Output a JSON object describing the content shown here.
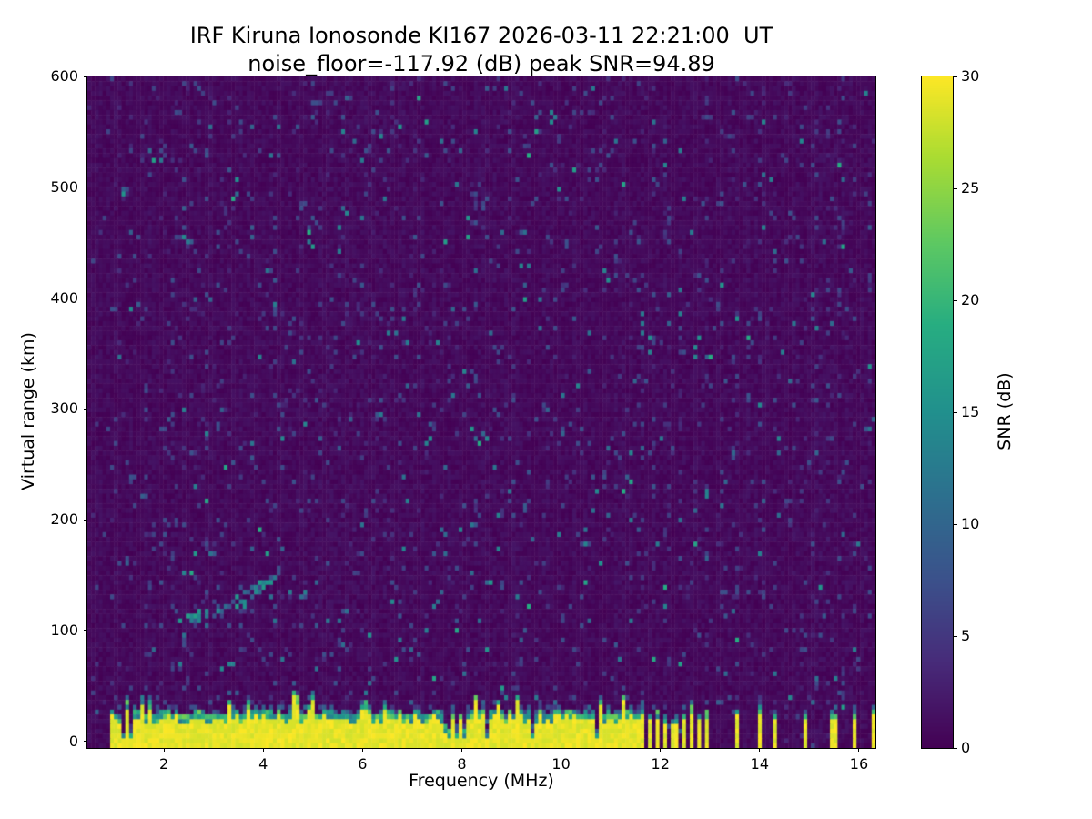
{
  "chart_data": {
    "type": "heatmap",
    "title_lines": [
      "IRF Kiruna Ionosonde KI167 2026-03-11 22:21:00  UT",
      "noise_floor=-117.92 (dB) peak SNR=94.89"
    ],
    "station": {
      "name": "IRF Kiruna Ionosonde",
      "code": "KI167",
      "timestamp_ut": "2026-03-11 22:21:00"
    },
    "stats": {
      "noise_floor_db": -117.92,
      "peak_snr_db": 94.89
    },
    "xlabel": "Frequency (MHz)",
    "ylabel": "Virtual range (km)",
    "xlim": [
      0.46,
      16.33
    ],
    "ylim": [
      -6,
      600
    ],
    "x_ticks": [
      2,
      4,
      6,
      8,
      10,
      12,
      14,
      16
    ],
    "y_ticks": [
      0,
      100,
      200,
      300,
      400,
      500,
      600
    ],
    "grid": false,
    "colorbar": {
      "label": "SNR (dB)",
      "min": 0,
      "max": 30,
      "ticks": [
        0,
        5,
        10,
        15,
        20,
        25,
        30
      ],
      "colormap": "viridis"
    },
    "colormap_stops": [
      [
        0.0,
        68,
        1,
        84
      ],
      [
        0.13,
        71,
        44,
        122
      ],
      [
        0.25,
        59,
        81,
        139
      ],
      [
        0.38,
        44,
        113,
        142
      ],
      [
        0.5,
        33,
        144,
        141
      ],
      [
        0.63,
        39,
        173,
        129
      ],
      [
        0.75,
        92,
        200,
        99
      ],
      [
        0.88,
        170,
        220,
        50
      ],
      [
        1.0,
        253,
        231,
        37
      ]
    ],
    "features": {
      "background_noise_snr_db": [
        0,
        2
      ],
      "data_freq_range_mhz": [
        0.9,
        16.33
      ],
      "ground_clutter": {
        "freq_range_mhz": [
          0.9,
          11.62
        ],
        "top_km_typical": 28,
        "top_km_max": 50,
        "snr_db": 30,
        "description": "saturated near-range return band (yellow) with ragged teal top edge and narrow dark notches"
      },
      "echo_trace": {
        "freq_range_mhz": [
          2.3,
          4.38
        ],
        "virtual_range_km": [
          110,
          156
        ],
        "snr_db": [
          8,
          16
        ],
        "description": "faint ascending ionospheric echo trace of scattered teal dashes"
      },
      "rfi_comb": {
        "freq_range_mhz": [
          11.62,
          13.08
        ],
        "period_mhz": 0.14,
        "bar_top_km": 30,
        "description": "dense comb of saturated vertical bars at low virtual range"
      },
      "rfi_isolated_bars_mhz": [
        13.52,
        14.02,
        14.32,
        14.92,
        15.5,
        15.92,
        16.28
      ],
      "rfi_stripe_region": {
        "freq_range_mhz": [
          11.55,
          16.33
        ],
        "period_mhz": 0.27,
        "description": "full-height columns of alternating elevated / suppressed noise speckle"
      }
    }
  }
}
